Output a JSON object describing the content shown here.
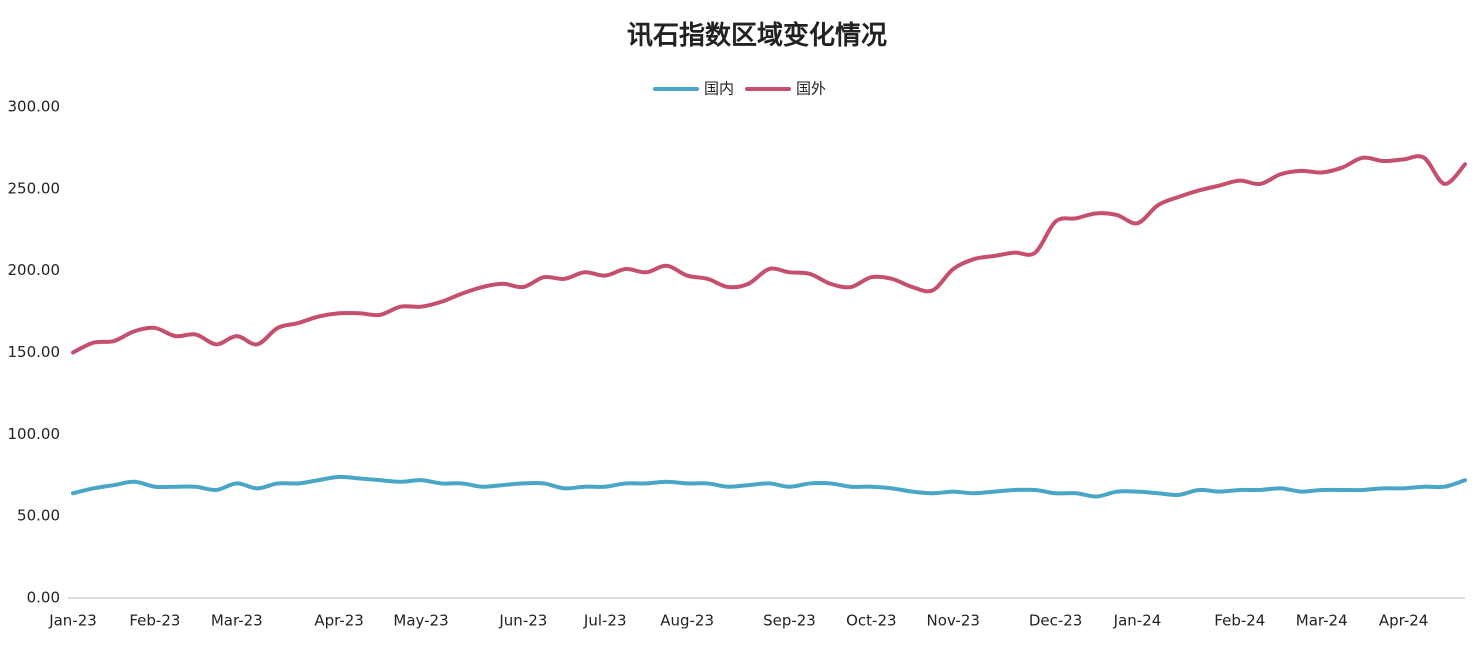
{
  "chart_data": {
    "type": "line",
    "title": "讯石指数区域变化情况",
    "categories": [
      "Jan-23",
      null,
      null,
      null,
      "Feb-23",
      null,
      null,
      null,
      "Mar-23",
      null,
      null,
      null,
      null,
      "Apr-23",
      null,
      null,
      null,
      "May-23",
      null,
      null,
      null,
      null,
      "Jun-23",
      null,
      null,
      null,
      "Jul-23",
      null,
      null,
      null,
      "Aug-23",
      null,
      null,
      null,
      null,
      "Sep-23",
      null,
      null,
      null,
      "Oct-23",
      null,
      null,
      null,
      "Nov-23",
      null,
      null,
      null,
      null,
      "Dec-23",
      null,
      null,
      null,
      "Jan-24",
      null,
      null,
      null,
      null,
      "Feb-24",
      null,
      null,
      null,
      "Mar-24",
      null,
      null,
      null,
      "Apr-24",
      null,
      null,
      null
    ],
    "series": [
      {
        "name": "国内",
        "color": "#4aa6c6",
        "values": [
          64,
          67,
          69,
          71,
          68,
          68,
          68,
          66,
          70,
          67,
          70,
          70,
          72,
          74,
          73,
          72,
          71,
          72,
          70,
          70,
          68,
          69,
          70,
          70,
          67,
          68,
          68,
          70,
          70,
          71,
          70,
          70,
          68,
          69,
          70,
          68,
          70,
          70,
          68,
          68,
          67,
          65,
          64,
          65,
          64,
          65,
          66,
          66,
          64,
          64,
          62,
          65,
          65,
          64,
          63,
          66,
          65,
          66,
          66,
          67,
          65,
          66,
          66,
          66,
          67,
          67,
          68,
          68,
          72
        ]
      },
      {
        "name": "国外",
        "color": "#c5506e",
        "values": [
          150,
          156,
          157,
          163,
          165,
          160,
          161,
          155,
          160,
          155,
          165,
          168,
          172,
          174,
          174,
          173,
          178,
          178,
          181,
          186,
          190,
          192,
          190,
          196,
          195,
          199,
          197,
          201,
          199,
          203,
          197,
          195,
          190,
          192,
          201,
          199,
          198,
          192,
          190,
          196,
          195,
          190,
          188,
          201,
          207,
          209,
          211,
          211,
          230,
          232,
          235,
          234,
          229,
          240,
          245,
          249,
          252,
          255,
          253,
          259,
          261,
          260,
          263,
          269,
          267,
          268,
          269,
          253,
          265
        ]
      }
    ],
    "ylim": [
      0,
      300
    ],
    "yticks": [
      {
        "value": 0,
        "label": "0.00"
      },
      {
        "value": 50,
        "label": "50.00"
      },
      {
        "value": 100,
        "label": "100.00"
      },
      {
        "value": 150,
        "label": "150.00"
      },
      {
        "value": 200,
        "label": "200.00"
      },
      {
        "value": 250,
        "label": "250.00"
      },
      {
        "value": 300,
        "label": "300.00"
      }
    ],
    "grid": false,
    "legend": "top"
  }
}
